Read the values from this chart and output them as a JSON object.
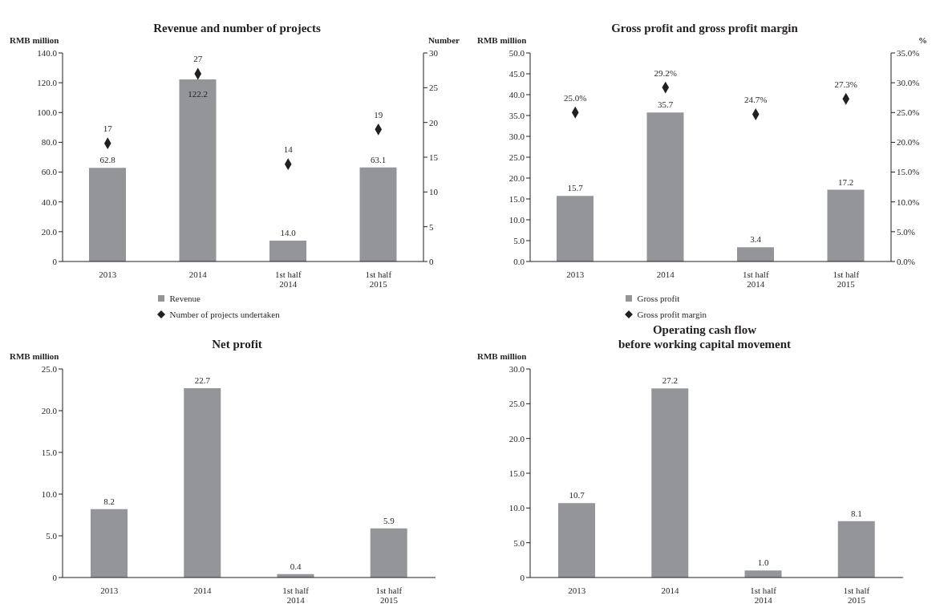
{
  "chart_data": [
    {
      "type": "bar",
      "title": "Revenue and number of projects",
      "ylabel": "RMB million",
      "y2label": "Number",
      "categories": [
        "2013",
        "2014",
        "1st half\n2014",
        "1st half\n2015"
      ],
      "series": [
        {
          "name": "Revenue",
          "color": "#939598",
          "values": [
            62.8,
            122.2,
            14.0,
            63.1
          ],
          "value_labels": [
            "62.8",
            "122.2",
            "14.0",
            "63.1"
          ]
        },
        {
          "name": "Number of projects undertaken",
          "type": "scatter",
          "axis": "y2",
          "color": "#231f20",
          "values": [
            17,
            27,
            14,
            19
          ],
          "value_labels": [
            "17",
            "27",
            "14",
            "19"
          ]
        }
      ],
      "marker": "diamond",
      "ylim": [
        0,
        140
      ],
      "yticks": [
        {
          "value": 0,
          "label": "0"
        },
        {
          "value": 20,
          "label": "20.0"
        },
        {
          "value": 40,
          "label": "40.0"
        },
        {
          "value": 60,
          "label": "60.0"
        },
        {
          "value": 80,
          "label": "80.0"
        },
        {
          "value": 100,
          "label": "100.0"
        },
        {
          "value": 120,
          "label": "120.0"
        },
        {
          "value": 140,
          "label": "140.0"
        }
      ],
      "y2lim": [
        0,
        30
      ],
      "y2ticks": [
        {
          "value": 0,
          "label": "0"
        },
        5,
        10,
        15,
        20,
        25,
        30
      ],
      "legend": "bottom"
    },
    {
      "type": "bar",
      "title": "Gross profit and gross profit margin",
      "ylabel": "RMB million",
      "y2label": "%",
      "categories": [
        "2013",
        "2014",
        "1st half\n2014",
        "1st half\n2015"
      ],
      "series": [
        {
          "name": "Gross profit",
          "color": "#939598",
          "values": [
            15.7,
            35.7,
            3.4,
            17.2
          ],
          "value_labels": [
            "15.7",
            "35.7",
            "3.4",
            "17.2"
          ]
        },
        {
          "name": "Gross profit margin",
          "type": "scatter",
          "axis": "y2",
          "color": "#231f20",
          "values": [
            25.0,
            29.2,
            24.7,
            27.3
          ],
          "value_labels": [
            "25.0%",
            "29.2%",
            "24.7%",
            "27.3%"
          ]
        }
      ],
      "marker": "diamond",
      "ylim": [
        0,
        50
      ],
      "yticks": [
        {
          "value": 0,
          "label": "0.0"
        },
        {
          "value": 5,
          "label": "5.0"
        },
        {
          "value": 10,
          "label": "10.0"
        },
        {
          "value": 15,
          "label": "15.0"
        },
        {
          "value": 20,
          "label": "20.0"
        },
        {
          "value": 25,
          "label": "25.0"
        },
        {
          "value": 30,
          "label": "30.0"
        },
        {
          "value": 35,
          "label": "35.0"
        },
        {
          "value": 40,
          "label": "40.0"
        },
        {
          "value": 45,
          "label": "45.0"
        },
        {
          "value": 50,
          "label": "50.0"
        }
      ],
      "y2lim": [
        0,
        35
      ],
      "y2ticks": [
        {
          "value": 0,
          "label": "0.0%"
        },
        {
          "value": 5,
          "label": "5.0%"
        },
        {
          "value": 10,
          "label": "10.0%"
        },
        {
          "value": 15,
          "label": "15.0%"
        },
        {
          "value": 20,
          "label": "20.0%"
        },
        {
          "value": 25,
          "label": "25.0%"
        },
        {
          "value": 30,
          "label": "30.0%"
        },
        {
          "value": 35,
          "label": "35.0%"
        }
      ],
      "legend": "bottom"
    },
    {
      "type": "bar",
      "title": "Net profit",
      "ylabel": "RMB million",
      "categories": [
        "2013",
        "2014",
        "1st half\n2014",
        "1st half\n2015"
      ],
      "series": [
        {
          "color": "#939598",
          "values": [
            8.2,
            22.7,
            0.4,
            5.9
          ],
          "value_labels": [
            "8.2",
            "22.7",
            "0.4",
            "5.9"
          ]
        }
      ],
      "ylim": [
        0,
        25
      ],
      "yticks": [
        {
          "value": 0,
          "label": "0"
        },
        {
          "value": 5,
          "label": "5.0"
        },
        {
          "value": 10,
          "label": "10.0"
        },
        {
          "value": 15,
          "label": "15.0"
        },
        {
          "value": 20,
          "label": "20.0"
        },
        {
          "value": 25,
          "label": "25.0"
        }
      ]
    },
    {
      "type": "bar",
      "title": "Operating cash flow\nbefore working capital movement",
      "ylabel": "RMB million",
      "categories": [
        "2013",
        "2014",
        "1st half\n2014",
        "1st half\n2015"
      ],
      "series": [
        {
          "color": "#939598",
          "values": [
            10.7,
            27.2,
            1.0,
            8.1
          ],
          "value_labels": [
            "10.7",
            "27.2",
            "1.0",
            "8.1"
          ]
        }
      ],
      "ylim": [
        0,
        30
      ],
      "yticks": [
        {
          "value": 0,
          "label": "0"
        },
        {
          "value": 5,
          "label": "5.0"
        },
        {
          "value": 10,
          "label": "10.0"
        },
        {
          "value": 15,
          "label": "15.0"
        },
        {
          "value": 20,
          "label": "20.0"
        },
        {
          "value": 25,
          "label": "25.0"
        },
        {
          "value": 30,
          "label": "30.0"
        }
      ]
    }
  ]
}
